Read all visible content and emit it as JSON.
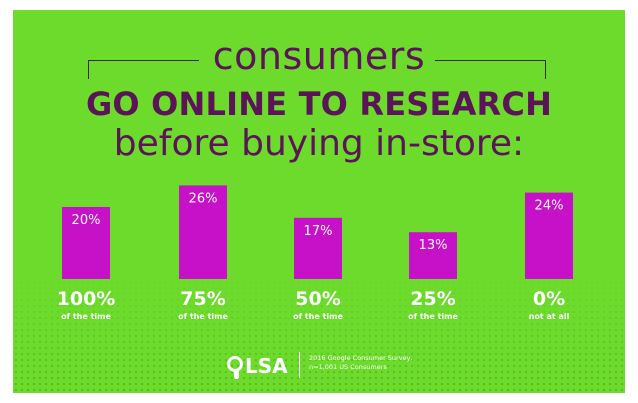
{
  "heading": {
    "line1": "consumers",
    "line2": "GO ONLINE TO RESEARCH",
    "line3": "before buying in-store:"
  },
  "colors": {
    "background": "#6cdb2b",
    "bar": "#c711c8",
    "title": "#5a1457",
    "text_light": "#ffffff"
  },
  "chart_data": {
    "type": "bar",
    "categories": [
      "100%",
      "75%",
      "50%",
      "25%",
      "0%"
    ],
    "category_subtitles": [
      "of the time",
      "of the time",
      "of the time",
      "of the time",
      "not at all"
    ],
    "values": [
      20,
      26,
      17,
      13,
      24
    ],
    "value_labels": [
      "20%",
      "26%",
      "17%",
      "13%",
      "24%"
    ],
    "unit": "%",
    "title": "consumers GO ONLINE TO RESEARCH before buying in-store:",
    "xlabel": "",
    "ylabel": "",
    "ylim": [
      0,
      30
    ],
    "grid": false,
    "legend": "none"
  },
  "footer": {
    "logo_text": "LSA",
    "logo_icon": "location-pin-icon",
    "note_line1": "2016 Google Consumer Survey,",
    "note_line2": "n=1,001 US Consumers"
  }
}
